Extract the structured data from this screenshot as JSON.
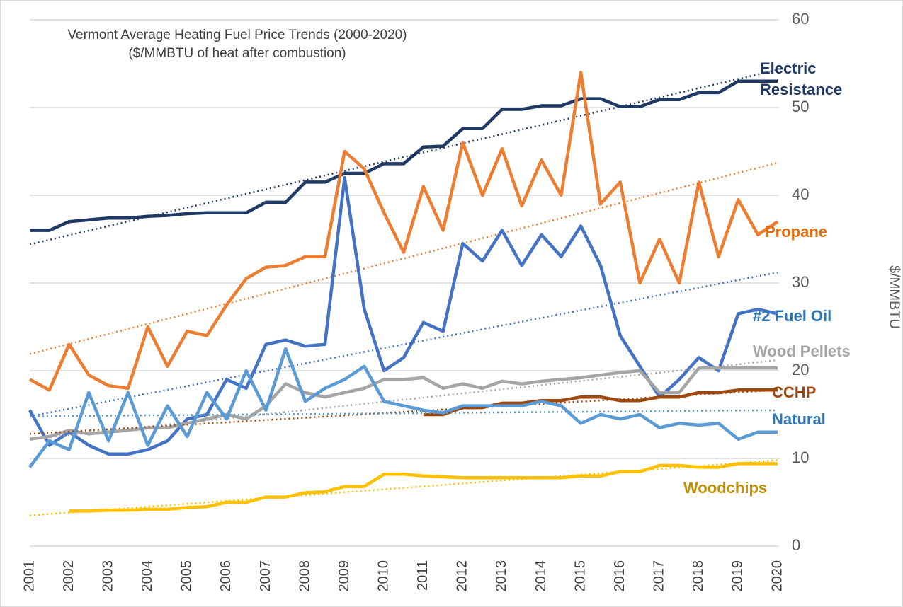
{
  "chart_data": {
    "type": "line",
    "title": "Vermont Average Heating Fuel Price Trends (2000-2020)",
    "subtitle": "($/MMBTU of heat after combustion)",
    "y_label": "$/MMBTU",
    "xlim": [
      2001,
      2020
    ],
    "xticks": [
      2001,
      2002,
      2003,
      2004,
      2005,
      2006,
      2007,
      2008,
      2009,
      2010,
      2011,
      2012,
      2013,
      2014,
      2015,
      2016,
      2017,
      2018,
      2019,
      2020
    ],
    "ylim": [
      0,
      60
    ],
    "yticks": [
      0,
      10,
      20,
      30,
      40,
      50,
      60
    ],
    "y_axis_side": "right",
    "grid": true,
    "x": [
      2001,
      2001.5,
      2002,
      2002.5,
      2003,
      2003.5,
      2004,
      2004.5,
      2005,
      2005.5,
      2006,
      2006.5,
      2007,
      2007.5,
      2008,
      2008.5,
      2009,
      2009.5,
      2010,
      2010.5,
      2011,
      2011.5,
      2012,
      2012.5,
      2013,
      2013.5,
      2014,
      2014.5,
      2015,
      2015.5,
      2016,
      2016.5,
      2017,
      2017.5,
      2018,
      2018.5,
      2019,
      2019.5,
      2020
    ],
    "series": [
      {
        "name": "Electric Resistance",
        "color": "#203864",
        "label_color": "#203864",
        "trend": [
          34.4,
          54.3
        ],
        "values": [
          36,
          36,
          37,
          37.2,
          37.4,
          37.4,
          37.6,
          37.7,
          37.9,
          38,
          38,
          38,
          39.2,
          39.2,
          41.5,
          41.5,
          42.5,
          42.5,
          43.6,
          43.6,
          45.5,
          45.6,
          47.6,
          47.6,
          49.8,
          49.8,
          50.2,
          50.2,
          51,
          51,
          50.1,
          50.1,
          50.9,
          50.9,
          51.7,
          51.7,
          53,
          53,
          53
        ]
      },
      {
        "name": "Propane",
        "color": "#ED7D31",
        "label_color": "#E46C0A",
        "trend": [
          21.9,
          43.7
        ],
        "values": [
          19,
          17.8,
          23,
          19.5,
          18.3,
          18,
          25,
          20.5,
          24.5,
          24,
          27.5,
          30.5,
          31.8,
          32,
          33,
          33,
          45,
          43,
          38,
          33.5,
          41,
          36,
          46,
          40,
          45.3,
          38.8,
          44,
          40,
          54,
          39,
          41.5,
          30,
          35,
          30,
          41.5,
          33,
          39.5,
          35.5,
          37
        ]
      },
      {
        "name": "#2 Fuel Oil",
        "color": "#4472C4",
        "label_color": "#2E75B6",
        "trend": [
          14.8,
          31.2
        ],
        "values": [
          15.5,
          11.5,
          13,
          11.5,
          10.5,
          10.5,
          11,
          12,
          14.5,
          15,
          19,
          18,
          23,
          23.5,
          22.8,
          23,
          42,
          27,
          20,
          21.5,
          25.5,
          24.5,
          34.5,
          32.5,
          36,
          32,
          35.5,
          33,
          36.5,
          32,
          24,
          20.5,
          17,
          19,
          21.5,
          20,
          26.5,
          27,
          26.5
        ]
      },
      {
        "name": "Wood Pellets",
        "color": "#A5A5A5",
        "label_color": "#A5A5A5",
        "trend": [
          12.2,
          21.2
        ],
        "values": [
          12.2,
          12.5,
          13.2,
          12.8,
          13,
          13.2,
          13.5,
          13.5,
          14,
          14.5,
          15,
          14.5,
          16,
          18.5,
          17.5,
          17,
          17.5,
          18,
          19,
          19,
          19.2,
          18,
          18.5,
          18,
          18.8,
          18.5,
          18.8,
          19,
          19.2,
          19.5,
          19.8,
          20,
          17.5,
          17.5,
          20.3,
          20.3,
          20.3,
          20.3,
          20.3
        ]
      },
      {
        "name": "CCHP",
        "color": "#9E480E",
        "label_color": "#9E480E",
        "trend": [
          12.8,
          17.8
        ],
        "values": [
          null,
          null,
          null,
          null,
          null,
          null,
          null,
          null,
          null,
          null,
          null,
          null,
          null,
          null,
          null,
          null,
          null,
          null,
          null,
          null,
          15,
          15,
          15.8,
          15.8,
          16.3,
          16.3,
          16.6,
          16.6,
          17,
          17,
          16.6,
          16.6,
          17,
          17,
          17.5,
          17.5,
          17.8,
          17.8,
          17.8
        ]
      },
      {
        "name": "Natural",
        "color": "#5B9BD5",
        "label_color": "#2E75B6",
        "trend": [
          14.8,
          15.5
        ],
        "values": [
          9,
          12,
          11,
          17.5,
          12,
          17.5,
          11.5,
          16,
          12.5,
          17.5,
          14.5,
          20,
          15.5,
          22.5,
          16.5,
          18,
          19,
          20.5,
          16.5,
          16,
          15.5,
          15.2,
          16,
          16,
          16,
          16,
          16.5,
          16,
          14,
          15,
          14.5,
          15,
          13.5,
          14,
          13.8,
          14,
          12.2,
          13,
          13
        ]
      },
      {
        "name": "Woodchips",
        "color": "#FFC000",
        "label_color": "#BF9000",
        "trend": [
          3.5,
          9.8
        ],
        "values": [
          null,
          null,
          4,
          4,
          4.1,
          4.1,
          4.2,
          4.2,
          4.4,
          4.5,
          5,
          5,
          5.6,
          5.6,
          6.1,
          6.2,
          6.8,
          6.8,
          8.2,
          8.2,
          8,
          7.9,
          7.8,
          7.8,
          7.8,
          7.8,
          7.8,
          7.8,
          8,
          8,
          8.5,
          8.5,
          9.2,
          9.2,
          9,
          9,
          9.4,
          9.4,
          9.4
        ]
      }
    ]
  }
}
